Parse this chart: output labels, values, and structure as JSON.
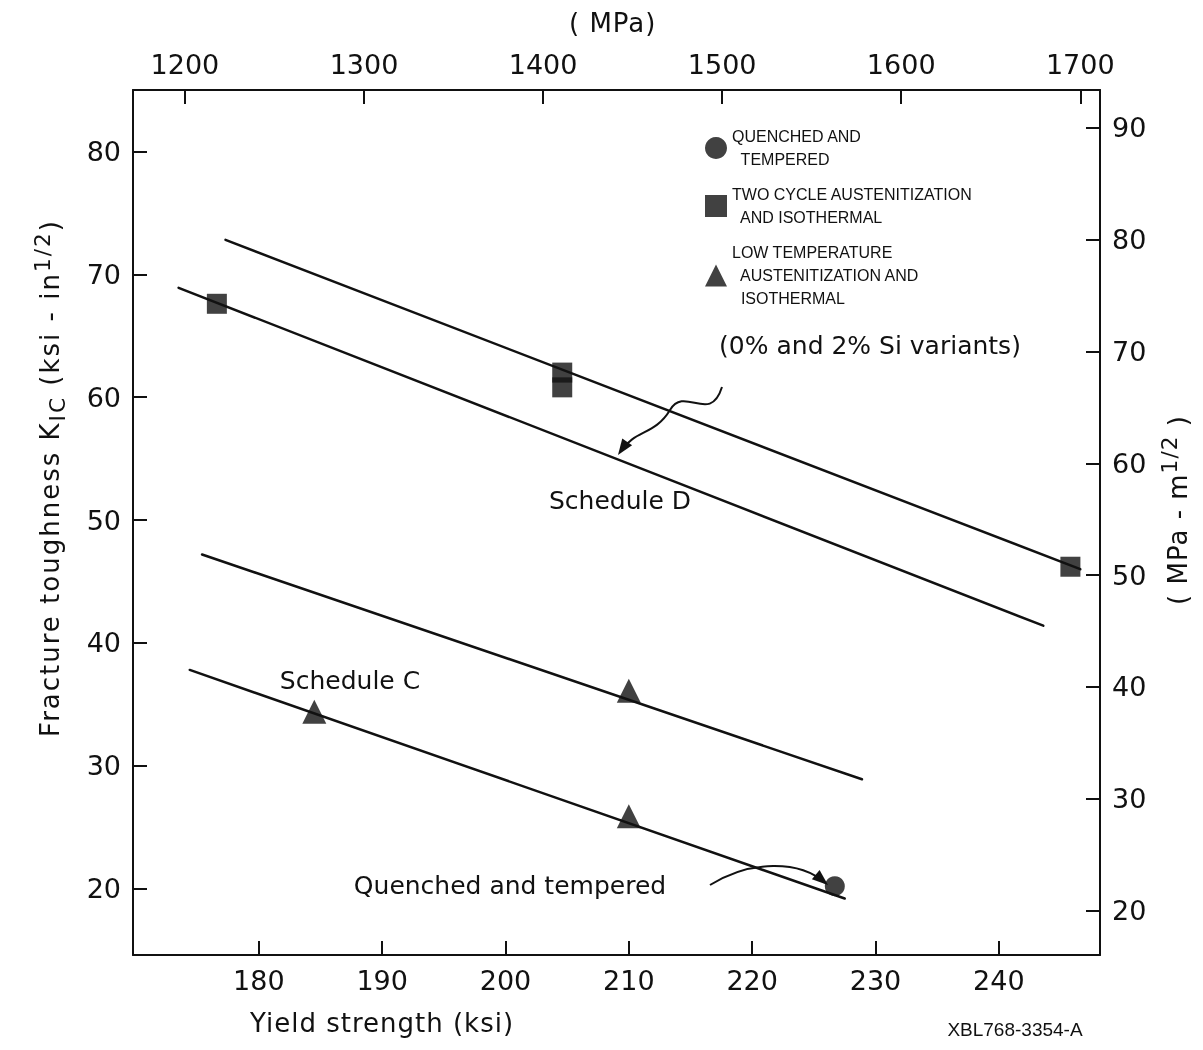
{
  "chart_data": {
    "type": "scatter",
    "xlabel": "Yield strength   (ksi)",
    "ylabel": "Fracture toughness   K$_{IC}$   (ksi - in$^{1/2}$)",
    "x2label": "( MPa)",
    "y2label": "( MPa - m$^{1/2}$ )",
    "xlim": [
      169.8,
      248.2
    ],
    "xticks": [
      180,
      190,
      200,
      210,
      220,
      230,
      240
    ],
    "ylim": [
      14.6,
      85
    ],
    "yticks": [
      20,
      30,
      40,
      50,
      60,
      70,
      80
    ],
    "x2lim": [
      1171,
      1711
    ],
    "x2ticks": [
      1200,
      1300,
      1400,
      1500,
      1600,
      1700
    ],
    "y2lim": [
      16.0,
      93.4
    ],
    "y2ticks": [
      20,
      30,
      40,
      50,
      60,
      70,
      80,
      90
    ],
    "grid": false,
    "legend": "top right",
    "series": [
      {
        "name": "QUENCHED AND\n  TEMPERED",
        "color": "#111111",
        "marker": "circle",
        "x": [
          226.7
        ],
        "values": [
          20.2
        ]
      },
      {
        "name": "TWO CYCLE AUSTENITIZATION\n  AND ISOTHERMAL",
        "color": "#111111",
        "marker": "square",
        "x": [
          176.6,
          204.6,
          204.6,
          245.8
        ],
        "values": [
          67.6,
          62.0,
          60.8,
          46.2
        ]
      },
      {
        "name": "LOW TEMPERATURE\n  AUSTENITIZATION AND\n  ISOTHERMAL",
        "color": "#111111",
        "marker": "triangle",
        "x": [
          184.5,
          210.0,
          210.0
        ],
        "values": [
          34.4,
          36.1,
          25.9
        ]
      },
      {
        "type": "line",
        "color": "#111111",
        "marker": "none",
        "x": [
          177.3,
          246.6
        ],
        "values": [
          72.8,
          46.0
        ]
      },
      {
        "type": "line",
        "color": "#111111",
        "marker": "none",
        "x": [
          173.5,
          243.6
        ],
        "values": [
          68.9,
          41.4
        ]
      },
      {
        "type": "line",
        "color": "#111111",
        "marker": "none",
        "x": [
          175.4,
          228.9
        ],
        "values": [
          47.2,
          28.9
        ]
      },
      {
        "type": "line",
        "color": "#111111",
        "marker": "none",
        "x": [
          174.4,
          227.5
        ],
        "values": [
          37.8,
          19.2
        ]
      }
    ],
    "annotations": [
      "(0% and 2% Si variants)",
      "Schedule D",
      "Schedule C",
      "Quenched and tempered",
      "XBL768-3354-A"
    ]
  }
}
